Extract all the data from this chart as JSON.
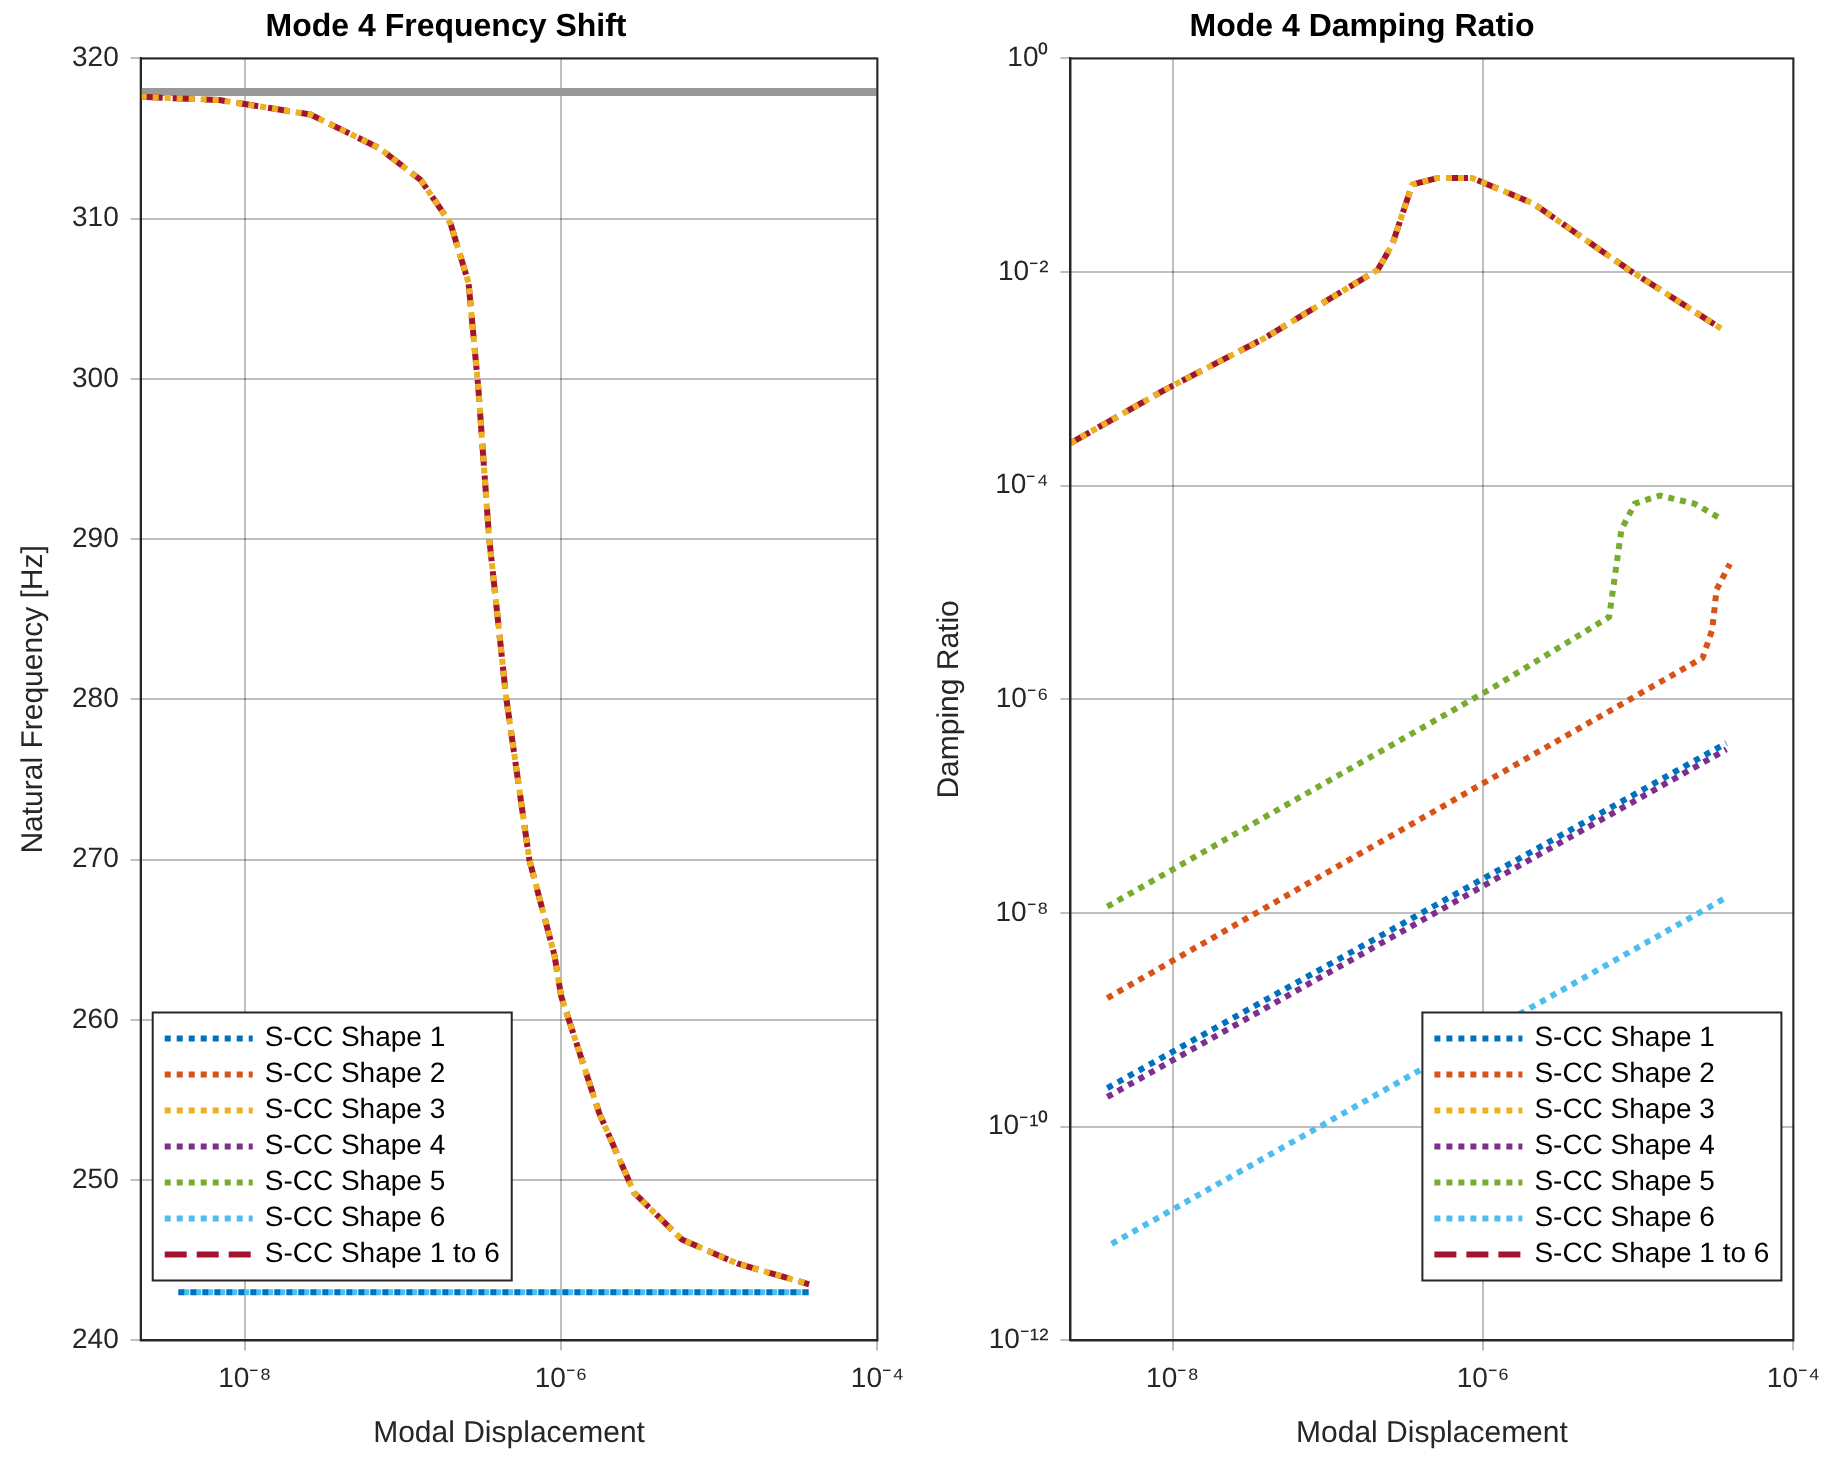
{
  "chart_data": [
    {
      "type": "line",
      "title": "Mode 4 Frequency Shift",
      "xlabel": "Modal Displacement",
      "ylabel": "Natural Frequency [Hz]",
      "log": "x",
      "grid": true,
      "legend": "bottom left",
      "line_style": "dotted",
      "xlim": [
        2.2e-09,
        0.0001
      ],
      "xticks": [
        {
          "value": 1e-08,
          "label": "10⁻⁸"
        },
        {
          "value": 1e-06,
          "label": "10⁻⁶"
        },
        {
          "value": 0.0001,
          "label": "10⁻⁴"
        }
      ],
      "ylim": [
        240,
        320
      ],
      "yticks": [
        240,
        250,
        260,
        270,
        280,
        290,
        300,
        310,
        320
      ],
      "ref_lines": [
        {
          "axis": "y",
          "value": 317.9,
          "color": "#999999"
        }
      ],
      "series": [
        {
          "name": "S-CC Shape 1",
          "color": "#0072bd",
          "x": [
            3.8e-09,
            3.7e-05
          ],
          "values": [
            243,
            243
          ]
        },
        {
          "name": "S-CC Shape 2",
          "color": "#d95319",
          "x": [
            null,
            null
          ],
          "values": [
            null,
            null
          ]
        },
        {
          "name": "S-CC Shape 3",
          "color": "#edb120",
          "x": [
            2.2e-09,
            6.9e-09,
            2.6e-08,
            7.1e-08,
            1.3e-07,
            2e-07,
            2.6e-07,
            3e-07,
            3.5e-07,
            4.5e-07,
            6.3e-07,
            9.1e-07,
            1e-06,
            1.74e-06,
            2.9e-06,
            5.8e-06,
            1.3e-05,
            3.7e-05
          ],
          "values": [
            317.6,
            317.4,
            316.5,
            314.4,
            312.4,
            309.7,
            306.0,
            299.4,
            290.2,
            280.1,
            270,
            264,
            261.5,
            254.2,
            249.2,
            246.3,
            244.8,
            243.5
          ]
        },
        {
          "name": "S-CC Shape 4",
          "color": "#7e2f8e",
          "x": [
            null,
            null
          ],
          "values": [
            null,
            null
          ]
        },
        {
          "name": "S-CC Shape 5",
          "color": "#77ac30",
          "x": [
            null,
            null
          ],
          "values": [
            null,
            null
          ]
        },
        {
          "name": "S-CC Shape 6",
          "color": "#4dbeee",
          "x": [
            3.8e-09,
            3.7e-05
          ],
          "values": [
            243,
            243
          ]
        },
        {
          "name": "S-CC Shape 1 to 6",
          "color": "#a2142f",
          "line_style": "dashed",
          "x": [
            2.2e-09,
            6.9e-09,
            2.6e-08,
            7.1e-08,
            1.3e-07,
            2e-07,
            2.6e-07,
            3e-07,
            3.5e-07,
            4.5e-07,
            6.3e-07,
            9.1e-07,
            1e-06,
            1.74e-06,
            2.9e-06,
            5.8e-06,
            1.3e-05,
            3.7e-05
          ],
          "values": [
            317.6,
            317.4,
            316.5,
            314.4,
            312.4,
            309.7,
            306.0,
            299.4,
            290.2,
            280.1,
            270,
            264,
            261.5,
            254.2,
            249.2,
            246.3,
            244.8,
            243.5
          ]
        }
      ]
    },
    {
      "type": "line",
      "title": "Mode 4 Damping Ratio",
      "xlabel": "Modal Displacement",
      "ylabel": "Damping Ratio",
      "log": "xy",
      "grid": true,
      "legend": "bottom right",
      "line_style": "dotted",
      "xlim": [
        2.2e-09,
        0.0001
      ],
      "xticks": [
        {
          "value": 1e-08,
          "label": "10⁻⁸"
        },
        {
          "value": 1e-06,
          "label": "10⁻⁶"
        },
        {
          "value": 0.0001,
          "label": "10⁻⁴"
        }
      ],
      "ylim": [
        1e-12,
        1
      ],
      "yticks": [
        {
          "value": 1e-12,
          "label": "10⁻¹²"
        },
        {
          "value": 1e-10,
          "label": "10⁻¹⁰"
        },
        {
          "value": 1e-08,
          "label": "10⁻⁸"
        },
        {
          "value": 1e-06,
          "label": "10⁻⁶"
        },
        {
          "value": 0.0001,
          "label": "10⁻⁴"
        },
        {
          "value": 0.01,
          "label": "10⁻²"
        },
        {
          "value": 1,
          "label": "10⁰"
        }
      ],
      "series": [
        {
          "name": "S-CC Shape 1",
          "color": "#0072bd",
          "x": [
            3.8e-09,
            3.7e-05
          ],
          "values": [
            2.3e-10,
            3.9e-07
          ]
        },
        {
          "name": "S-CC Shape 2",
          "color": "#d95319",
          "x": [
            3.8e-09,
            2.6e-05,
            3e-05,
            3.2e-05,
            3.9e-05
          ],
          "values": [
            1.6e-09,
            2.45e-06,
            4.5e-06,
            1.07e-05,
            1.86e-05
          ]
        },
        {
          "name": "S-CC Shape 3",
          "color": "#edb120",
          "x": [
            2.2e-09,
            8.9e-09,
            3.9e-08,
            2.1e-07,
            2.6e-07,
            3.5e-07,
            5.1e-07,
            8.5e-07,
            2.1e-06,
            8.7e-06,
            3.5e-05
          ],
          "values": [
            0.00025,
            0.00079,
            0.0024,
            0.0105,
            0.018,
            0.066,
            0.076,
            0.076,
            0.044,
            0.0105,
            0.0029
          ]
        },
        {
          "name": "S-CC Shape 4",
          "color": "#7e2f8e",
          "x": [
            3.8e-09,
            3.7e-05
          ],
          "values": [
            1.9e-10,
            3.4e-07
          ]
        },
        {
          "name": "S-CC Shape 5",
          "color": "#77ac30",
          "x": [
            3.8e-09,
            1.17e-06,
            6.5e-06,
            7.8e-06,
            9.5e-06,
            1.38e-05,
            2.3e-05,
            3.5e-05
          ],
          "values": [
            1.15e-08,
            1.3e-06,
            5.9e-06,
            3.9e-05,
            6.8e-05,
            8.1e-05,
            6.8e-05,
            4.8e-05
          ]
        },
        {
          "name": "S-CC Shape 6",
          "color": "#4dbeee",
          "x": [
            3.8e-09,
            3.7e-05
          ],
          "values": [
            7.6e-12,
            1.4e-08
          ]
        },
        {
          "name": "S-CC Shape 1 to 6",
          "color": "#a2142f",
          "line_style": "dashed",
          "x": [
            2.2e-09,
            8.9e-09,
            3.9e-08,
            2.1e-07,
            2.6e-07,
            3.5e-07,
            5.1e-07,
            8.5e-07,
            2.1e-06,
            8.7e-06,
            3.5e-05
          ],
          "values": [
            0.00025,
            0.00079,
            0.0024,
            0.0105,
            0.018,
            0.066,
            0.076,
            0.076,
            0.044,
            0.0105,
            0.0029
          ]
        }
      ]
    }
  ]
}
